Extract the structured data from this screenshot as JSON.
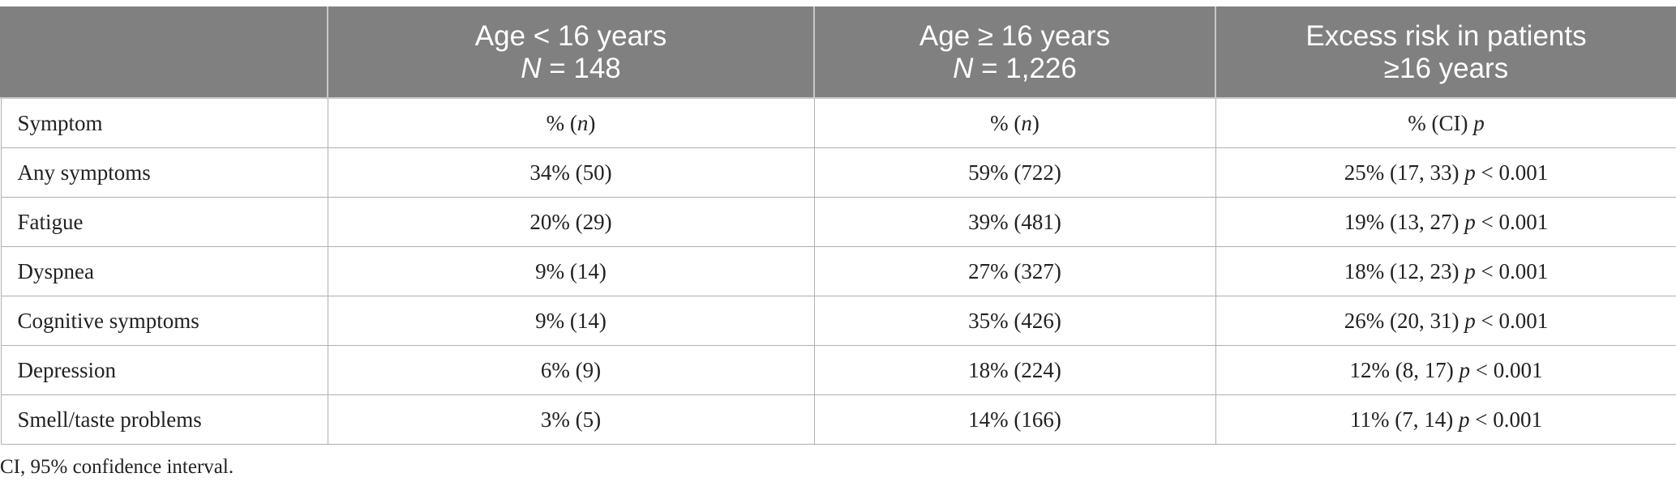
{
  "header": {
    "col0": "",
    "col1": {
      "line1": "Age < 16 years",
      "n_label": "N",
      "n_value": " = 148"
    },
    "col2": {
      "line1": "Age ≥ 16 years",
      "n_label": "N",
      "n_value": " = 1,226"
    },
    "col3": {
      "line1": "Excess risk in patients",
      "line2": "≥16 years"
    }
  },
  "subheader": {
    "symptom": "Symptom",
    "col1_pct": "% (",
    "col1_n": "n",
    "col1_close": ")",
    "col2_pct": "% (",
    "col2_n": "n",
    "col2_close": ")",
    "col3_text": "% (CI) ",
    "col3_p": "p"
  },
  "rows": [
    {
      "symptom": "Any symptoms",
      "under16": "34% (50)",
      "over16": "59% (722)",
      "excess": "25% (17, 33) ",
      "p": "p",
      "p_value": " < 0.001"
    },
    {
      "symptom": "Fatigue",
      "under16": "20% (29)",
      "over16": "39% (481)",
      "excess": "19% (13, 27) ",
      "p": "p",
      "p_value": " < 0.001"
    },
    {
      "symptom": "Dyspnea",
      "under16": "9% (14)",
      "over16": "27% (327)",
      "excess": "18% (12, 23) ",
      "p": "p",
      "p_value": " < 0.001"
    },
    {
      "symptom": "Cognitive symptoms",
      "under16": "9% (14)",
      "over16": "35% (426)",
      "excess": "26% (20, 31) ",
      "p": "p",
      "p_value": " < 0.001"
    },
    {
      "symptom": "Depression",
      "under16": "6% (9)",
      "over16": "18% (224)",
      "excess": "12% (8, 17) ",
      "p": "p",
      "p_value": " < 0.001"
    },
    {
      "symptom": "Smell/taste problems",
      "under16": "3% (5)",
      "over16": "14% (166)",
      "excess": "11% (7, 14) ",
      "p": "p",
      "p_value": " < 0.001"
    }
  ],
  "footnote": "CI, 95% confidence interval.",
  "colors": {
    "header_bg": "#808080",
    "header_text": "#ffffff",
    "grid": "#b0b0b0",
    "text": "#222222"
  }
}
